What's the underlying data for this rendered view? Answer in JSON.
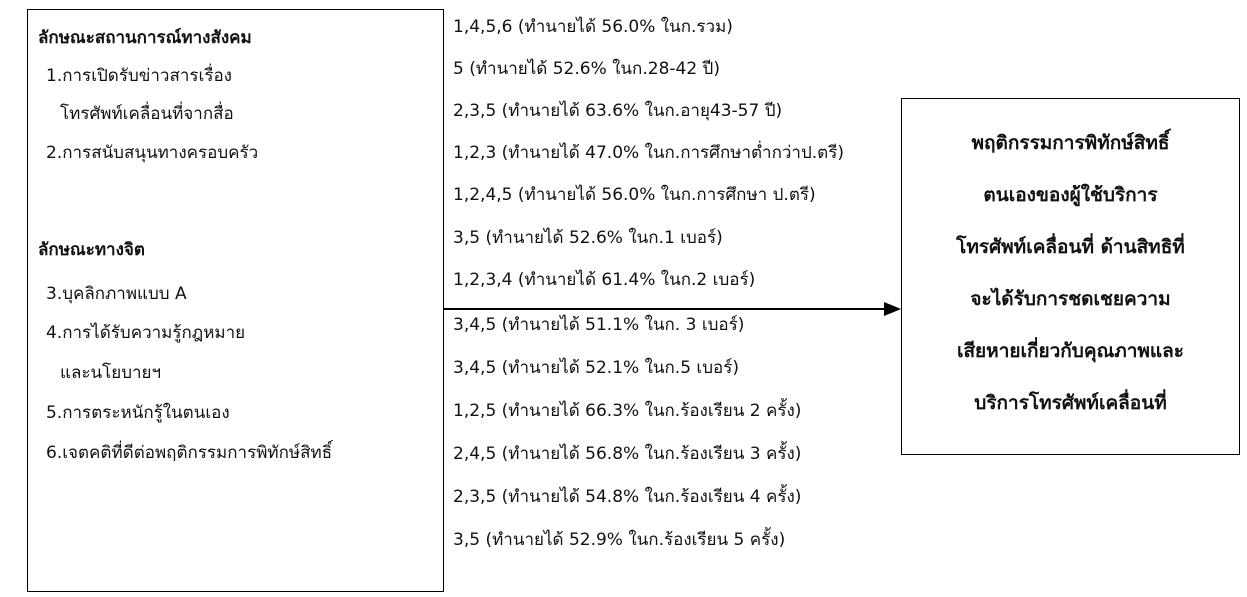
{
  "left_box": {
    "social_title": "ลักษณะสถานการณ์ทางสังคม",
    "social_items": [
      "1.การเปิดรับข่าวสารเรื่อง",
      "โทรศัพท์เคลื่อนที่จากสื่อ",
      "2.การสนับสนุนทางครอบครัว"
    ],
    "psych_title": "ลักษณะทางจิต",
    "psych_items": [
      "3.บุคลิกภาพแบบ A",
      "4.การได้รับความรู้กฎหมาย",
      "และนโยบายฯ",
      "5.การตระหนักรู้ในตนเอง",
      "6.เจตคติที่ดีต่อพฤติกรรมการพิทักษ์สิทธิ์"
    ]
  },
  "predictions": [
    "1,4,5,6 (ทำนายได้ 56.0% ในก.รวม)",
    "5 (ทำนายได้ 52.6% ในก.28-42 ปี)",
    "2,3,5 (ทำนายได้ 63.6% ในก.อายุ43-57 ปี)",
    "1,2,3 (ทำนายได้ 47.0% ในก.การศึกษาต่ำกว่าป.ตรี)",
    "1,2,4,5 (ทำนายได้ 56.0% ในก.การศึกษา ป.ตรี)",
    "3,5 (ทำนายได้ 52.6% ในก.1 เบอร์)",
    "1,2,3,4 (ทำนายได้ 61.4% ในก.2 เบอร์)",
    "3,4,5  (ทำนายได้ 51.1% ในก. 3 เบอร์)",
    "3,4,5 (ทำนายได้ 52.1% ในก.5 เบอร์)",
    "1,2,5 (ทำนายได้ 66.3% ในก.ร้องเรียน 2 ครั้ง)",
    "2,4,5 (ทำนายได้ 56.8% ในก.ร้องเรียน 3 ครั้ง)",
    "2,3,5 (ทำนายได้ 54.8% ในก.ร้องเรียน 4 ครั้ง)",
    "3,5 (ทำนายได้ 52.9% ในก.ร้องเรียน 5 ครั้ง)"
  ],
  "right_box": {
    "lines": [
      "พฤติกรรมการพิทักษ์สิทธิ์",
      "ตนเองของผู้ใช้บริการ",
      "โทรศัพท์เคลื่อนที่ ด้านสิทธิที่",
      "จะได้รับการชดเชยความ",
      "เสียหายเกี่ยวกับคุณภาพและ",
      "บริการโทรศัพท์เคลื่อนที่"
    ]
  }
}
